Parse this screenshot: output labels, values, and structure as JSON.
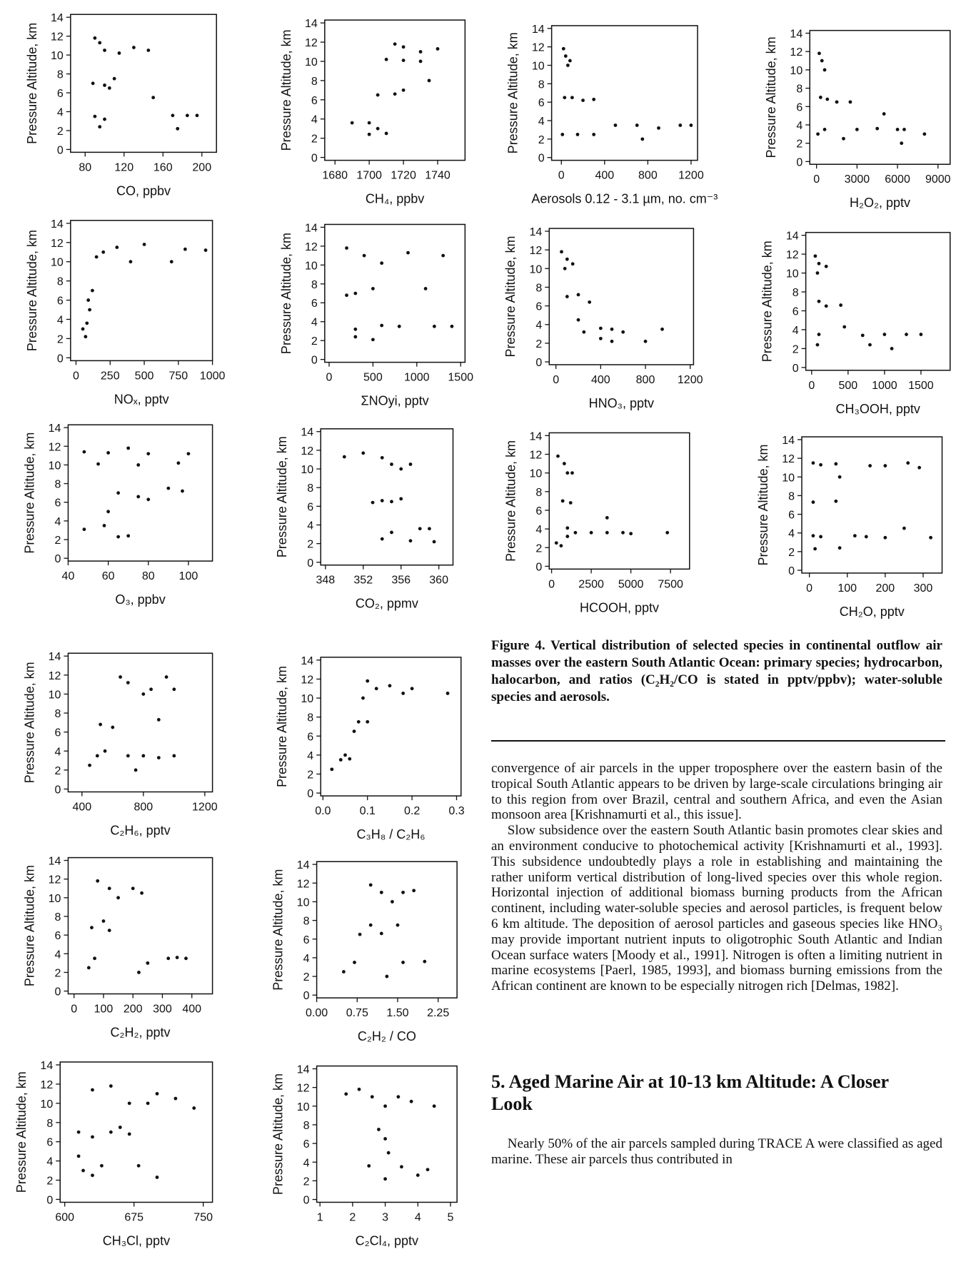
{
  "chart_data": [
    {
      "type": "scatter",
      "y_label": "Pressure Altitude,  km",
      "x_label": "CO,  ppbv",
      "xlim": [
        65,
        215
      ],
      "xticks": [
        80,
        120,
        160,
        200
      ],
      "ylim": [
        -0.3,
        14.3
      ],
      "yticks": [
        0,
        2,
        4,
        6,
        8,
        10,
        12,
        14
      ],
      "x": [
        90,
        95,
        100,
        115,
        130,
        145,
        88,
        100,
        105,
        110,
        90,
        100,
        95,
        170,
        185,
        195,
        175,
        150
      ],
      "y": [
        11.8,
        11.3,
        10.5,
        10.2,
        10.8,
        10.5,
        7,
        6.8,
        6.5,
        7.5,
        3.5,
        3.2,
        2.4,
        3.6,
        3.6,
        3.6,
        2.2,
        5.5
      ]
    },
    {
      "type": "scatter",
      "y_label": "Pressure Altitude,  km",
      "x_label": "CH₄,  ppbv",
      "xlim": [
        1674,
        1756
      ],
      "xticks": [
        1680,
        1700,
        1720,
        1740
      ],
      "ylim": [
        -0.3,
        14.3
      ],
      "yticks": [
        0,
        2,
        4,
        6,
        8,
        10,
        12,
        14
      ],
      "x": [
        1690,
        1700,
        1705,
        1700,
        1710,
        1705,
        1715,
        1720,
        1710,
        1720,
        1730,
        1720,
        1730,
        1740,
        1715,
        1735
      ],
      "y": [
        3.6,
        3.6,
        3.0,
        2.4,
        2.5,
        6.5,
        6.6,
        7.0,
        10.2,
        10.1,
        10.0,
        11.5,
        11.0,
        11.3,
        11.8,
        8.0
      ]
    },
    {
      "type": "scatter",
      "y_label": "Pressure Altitude,  km",
      "x_label": "Aerosols 0.12 - 3.1 µm,  no. cm⁻³",
      "xlim": [
        -90,
        1260
      ],
      "xticks": [
        0,
        400,
        800,
        1200
      ],
      "ylim": [
        -0.3,
        14.3
      ],
      "yticks": [
        0,
        2,
        4,
        6,
        8,
        10,
        12,
        14
      ],
      "x": [
        20,
        40,
        60,
        80,
        30,
        100,
        200,
        300,
        10,
        150,
        300,
        500,
        700,
        900,
        1100,
        1200,
        750
      ],
      "y": [
        11.8,
        11,
        10,
        10.5,
        6.5,
        6.5,
        6.2,
        6.3,
        2.5,
        2.5,
        2.5,
        3.5,
        3.5,
        3.2,
        3.5,
        3.5,
        2
      ]
    },
    {
      "type": "scatter",
      "y_label": "Pressure Altitude,  km",
      "x_label": "H₂O₂,  pptv",
      "xlim": [
        -500,
        9900
      ],
      "xticks": [
        0,
        3000,
        6000,
        9000
      ],
      "ylim": [
        -0.3,
        14.3
      ],
      "yticks": [
        0,
        2,
        4,
        6,
        8,
        10,
        12,
        14
      ],
      "x": [
        200,
        400,
        600,
        300,
        800,
        1500,
        2500,
        100,
        600,
        2000,
        3000,
        4500,
        5000,
        6000,
        6500,
        8000,
        6300
      ],
      "y": [
        11.8,
        11,
        10,
        7,
        6.8,
        6.5,
        6.5,
        3,
        3.5,
        2.5,
        3.5,
        3.6,
        5.2,
        3.5,
        3.5,
        3.0,
        2
      ]
    },
    {
      "type": "scatter",
      "y_label": "Pressure Altitude,  km",
      "x_label": "NOₓ,  pptv",
      "xlim": [
        -40,
        1000
      ],
      "xticks": [
        0,
        250,
        500,
        750,
        1000
      ],
      "ylim": [
        -0.3,
        14.3
      ],
      "yticks": [
        0,
        2,
        4,
        6,
        8,
        10,
        12,
        14
      ],
      "x": [
        50,
        80,
        70,
        100,
        120,
        90,
        150,
        200,
        300,
        400,
        500,
        700,
        800,
        950
      ],
      "y": [
        3,
        3.6,
        2.2,
        5,
        7,
        6,
        10.5,
        11,
        11.5,
        10,
        11.8,
        10,
        11.3,
        11.2
      ]
    },
    {
      "type": "scatter",
      "y_label": "Pressure Altitude,  km",
      "x_label": "ΣNOyi,  pptv",
      "xlim": [
        -50,
        1550
      ],
      "xticks": [
        0,
        500,
        1000,
        1500
      ],
      "ylim": [
        -0.3,
        14.3
      ],
      "yticks": [
        0,
        2,
        4,
        6,
        8,
        10,
        12,
        14
      ],
      "x": [
        200,
        400,
        600,
        900,
        1300,
        300,
        500,
        200,
        1100,
        300,
        600,
        800,
        1200,
        1400,
        300,
        500
      ],
      "y": [
        11.8,
        11,
        10.2,
        11.3,
        11,
        7,
        7.5,
        6.8,
        7.5,
        3.2,
        3.6,
        3.5,
        3.5,
        3.5,
        2.4,
        2.1
      ]
    },
    {
      "type": "scatter",
      "y_label": "Pressure Altitude,  km",
      "x_label": "HNO₃,  pptv",
      "xlim": [
        -60,
        1230
      ],
      "xticks": [
        0,
        400,
        800,
        1200
      ],
      "ylim": [
        -0.3,
        14.3
      ],
      "yticks": [
        0,
        2,
        4,
        6,
        8,
        10,
        12,
        14
      ],
      "x": [
        50,
        100,
        80,
        150,
        100,
        200,
        300,
        200,
        250,
        400,
        500,
        600,
        400,
        500,
        800,
        950
      ],
      "y": [
        11.8,
        11,
        10,
        10.5,
        7,
        7.2,
        6.4,
        4.5,
        3.2,
        3.6,
        3.5,
        3.2,
        2.5,
        2.2,
        2.2,
        3.5
      ]
    },
    {
      "type": "scatter",
      "y_label": "Pressure Altitude,  km",
      "x_label": "CH₃OOH,  pptv",
      "xlim": [
        -80,
        1900
      ],
      "xticks": [
        0,
        500,
        1000,
        1500
      ],
      "ylim": [
        -0.3,
        14.3
      ],
      "yticks": [
        0,
        2,
        4,
        6,
        8,
        10,
        12,
        14
      ],
      "x": [
        50,
        100,
        200,
        80,
        100,
        200,
        400,
        100,
        80,
        700,
        800,
        1000,
        1100,
        1300,
        1500,
        450
      ],
      "y": [
        11.8,
        11,
        10.7,
        10,
        7,
        6.5,
        6.6,
        3.5,
        2.4,
        3.4,
        2.4,
        3.5,
        2,
        3.5,
        3.5,
        4.3
      ]
    },
    {
      "type": "scatter",
      "y_label": "Pressure Altitude,  km",
      "x_label": "O₃,  ppbv",
      "xlim": [
        40,
        112
      ],
      "xticks": [
        40,
        60,
        80,
        100
      ],
      "ylim": [
        -0.3,
        14.3
      ],
      "yticks": [
        0,
        2,
        4,
        6,
        8,
        10,
        12,
        14
      ],
      "x": [
        48,
        60,
        70,
        80,
        100,
        55,
        75,
        95,
        65,
        75,
        80,
        90,
        97,
        48,
        58,
        65,
        70,
        60
      ],
      "y": [
        11.4,
        11.3,
        11.8,
        11.2,
        11.2,
        10.1,
        10.0,
        10.2,
        7,
        6.6,
        6.3,
        7.5,
        7.2,
        3.1,
        3.5,
        2.3,
        2.4,
        5
      ]
    },
    {
      "type": "scatter",
      "y_label": "Pressure Altitude,  km",
      "x_label": "CO₂,  ppmv",
      "xlim": [
        347.5,
        361.5
      ],
      "xticks": [
        348,
        352,
        356,
        360
      ],
      "ylim": [
        -0.3,
        14.3
      ],
      "yticks": [
        0,
        2,
        4,
        6,
        8,
        10,
        12,
        14
      ],
      "x": [
        350,
        352,
        354,
        355,
        356,
        357,
        355,
        354,
        356,
        354,
        355,
        357,
        358,
        359,
        359.5,
        353
      ],
      "y": [
        11.3,
        11.7,
        11.2,
        10.5,
        10,
        10.5,
        6.5,
        6.6,
        6.8,
        2.5,
        3.2,
        2.3,
        3.6,
        3.6,
        2.2,
        6.4
      ]
    },
    {
      "type": "scatter",
      "y_label": "Pressure Altitude,  km",
      "x_label": "HCOOH,  pptv",
      "xlim": [
        -150,
        8700
      ],
      "xticks": [
        0,
        2500,
        5000,
        7500
      ],
      "ylim": [
        -0.3,
        14.3
      ],
      "yticks": [
        0,
        2,
        4,
        6,
        8,
        10,
        12,
        14
      ],
      "x": [
        400,
        800,
        1000,
        700,
        1200,
        300,
        600,
        1000,
        1500,
        2500,
        3500,
        4500,
        5000,
        3500,
        1000,
        7300,
        1300
      ],
      "y": [
        11.8,
        11,
        10,
        7,
        6.8,
        2.5,
        2.2,
        3.2,
        3.6,
        3.6,
        3.6,
        3.6,
        3.5,
        5.2,
        4.1,
        3.6,
        10
      ]
    },
    {
      "type": "scatter",
      "y_label": "Pressure Altitude,  km",
      "x_label": "CH₂O,  pptv",
      "xlim": [
        -20,
        350
      ],
      "xticks": [
        0,
        100,
        200,
        300
      ],
      "ylim": [
        -0.3,
        14.3
      ],
      "yticks": [
        0,
        2,
        4,
        6,
        8,
        10,
        12,
        14
      ],
      "x": [
        10,
        30,
        70,
        80,
        160,
        200,
        260,
        290,
        10,
        70,
        10,
        30,
        80,
        120,
        150,
        200,
        250,
        320,
        15
      ],
      "y": [
        11.5,
        11.3,
        11.4,
        10,
        11.2,
        11.2,
        11.5,
        11,
        7.3,
        7.4,
        3.7,
        3.6,
        2.4,
        3.7,
        3.6,
        3.5,
        4.5,
        3.5,
        2.3
      ]
    },
    {
      "type": "scatter",
      "y_label": "Pressure Altitude,  km",
      "x_label": "C₂H₆,  pptv",
      "xlim": [
        310,
        1250
      ],
      "xticks": [
        400,
        800,
        1200
      ],
      "ylim": [
        -0.3,
        14.3
      ],
      "yticks": [
        0,
        2,
        4,
        6,
        8,
        10,
        12,
        14
      ],
      "x": [
        450,
        500,
        550,
        520,
        600,
        650,
        700,
        800,
        850,
        950,
        1000,
        900,
        700,
        800,
        900,
        1000,
        750
      ],
      "y": [
        2.5,
        3.5,
        4,
        6.8,
        6.5,
        11.8,
        11.2,
        10,
        10.5,
        11.8,
        10.5,
        7.3,
        3.5,
        3.5,
        3.3,
        3.5,
        2
      ]
    },
    {
      "type": "scatter",
      "y_label": "Pressure Altitude,  km",
      "x_label": "C₃H₈ / C₂H₆",
      "xlim": [
        -0.005,
        0.31
      ],
      "xticks": [
        {
          "value": 0,
          "label": "0.0"
        },
        0.1,
        0.2,
        0.3
      ],
      "ylim": [
        -0.3,
        14.3
      ],
      "yticks": [
        0,
        2,
        4,
        6,
        8,
        10,
        12,
        14
      ],
      "x": [
        0.02,
        0.04,
        0.05,
        0.07,
        0.08,
        0.09,
        0.1,
        0.12,
        0.15,
        0.18,
        0.2,
        0.28,
        0.1,
        0.06
      ],
      "y": [
        2.5,
        3.5,
        4,
        6.5,
        7.5,
        10,
        11.8,
        11,
        11.3,
        10.5,
        11,
        10.5,
        7.5,
        3.6
      ]
    },
    {
      "type": "scatter",
      "y_label": "Pressure Altitude,  km",
      "x_label": "C₂H₂,  pptv",
      "xlim": [
        -20,
        470
      ],
      "xticks": [
        0,
        100,
        200,
        300,
        400
      ],
      "ylim": [
        -0.3,
        14.3
      ],
      "yticks": [
        0,
        2,
        4,
        6,
        8,
        10,
        12,
        14
      ],
      "x": [
        50,
        70,
        60,
        100,
        120,
        80,
        120,
        150,
        200,
        230,
        250,
        320,
        350,
        380,
        220
      ],
      "y": [
        2.5,
        3.5,
        6.8,
        7.5,
        6.5,
        11.8,
        11,
        10,
        11,
        10.5,
        3,
        3.5,
        3.6,
        3.5,
        2
      ]
    },
    {
      "type": "scatter",
      "y_label": "Pressure Altitude,  km",
      "x_label": "C₂H₂ / CO",
      "xlim": [
        0,
        2.6
      ],
      "xticks": [
        {
          "value": 0,
          "label": "0.00"
        },
        0.75,
        {
          "value": 1.5,
          "label": "1.50"
        },
        2.25
      ],
      "ylim": [
        -0.3,
        14.3
      ],
      "yticks": [
        0,
        2,
        4,
        6,
        8,
        10,
        12,
        14
      ],
      "x": [
        0.5,
        0.7,
        0.8,
        1.0,
        1.2,
        1.0,
        1.2,
        1.4,
        1.6,
        1.8,
        1.3,
        1.6,
        2.0,
        1.5
      ],
      "y": [
        2.5,
        3.5,
        6.5,
        7.5,
        6.6,
        11.8,
        11,
        10,
        11,
        11.2,
        2,
        3.5,
        3.6,
        7.5
      ]
    },
    {
      "type": "scatter",
      "y_label": "Pressure Altitude,  km",
      "x_label": "CH₃Cl,  pptv",
      "xlim": [
        595,
        760
      ],
      "xticks": [
        600,
        675,
        750
      ],
      "ylim": [
        -0.3,
        14.3
      ],
      "yticks": [
        0,
        2,
        4,
        6,
        8,
        10,
        12,
        14
      ],
      "x": [
        615,
        620,
        630,
        640,
        630,
        650,
        660,
        670,
        630,
        650,
        670,
        690,
        700,
        720,
        740,
        680,
        700,
        615
      ],
      "y": [
        4.5,
        3,
        2.5,
        3.5,
        6.5,
        7,
        7.5,
        6.8,
        11.4,
        11.8,
        10,
        10,
        11,
        10.5,
        9.5,
        3.5,
        2.3,
        7
      ]
    },
    {
      "type": "scatter",
      "y_label": "Pressure Altitude,  km",
      "x_label": "C₂Cl₄,  pptv",
      "xlim": [
        0.9,
        5.2
      ],
      "xticks": [
        1,
        2,
        3,
        4,
        5
      ],
      "ylim": [
        -0.3,
        14.3
      ],
      "yticks": [
        0,
        2,
        4,
        6,
        8,
        10,
        12,
        14
      ],
      "x": [
        1.8,
        2.2,
        2.6,
        3.0,
        3.4,
        3.8,
        4.5,
        2.8,
        3.0,
        3.1,
        2.5,
        3.0,
        3.5,
        4.0,
        4.3
      ],
      "y": [
        11.3,
        11.8,
        11,
        10,
        11,
        10.5,
        10,
        7.5,
        6.5,
        5,
        3.6,
        2.2,
        3.5,
        2.6,
        3.2
      ]
    }
  ],
  "figure_caption": {
    "label": "Figure 4.",
    "text": "Vertical distribution of selected species in continental outflow air masses over the eastern South Atlantic Ocean: primary species;  hydrocarbon, halocarbon, and ratios (C₂H₂/CO is stated in pptv/ppbv); water-soluble species and aerosols."
  },
  "body": {
    "paragraphs": [
      "convergence of air parcels in the upper troposphere over the eastern basin of the tropical South Atlantic appears to be driven by large-scale circulations bringing air to this region from over Brazil, central and southern Africa, and even the Asian monsoon area [Krishnamurti et al., this issue].",
      "Slow subsidence over the eastern South Atlantic basin promotes clear skies and an environment conducive to photochemical activity [Krishnamurti et al., 1993].  This subsidence undoubtedly plays a role in establishing and maintaining the rather uniform vertical distribution of long-lived species over this whole region.  Horizontal injection of additional biomass burning products from the African continent, including water-soluble species and aerosol particles, is frequent below 6 km altitude. The deposition of aerosol particles and gaseous species like HNO₃ may provide important nutrient inputs to oligotrophic South Atlantic and Indian Ocean surface waters [Moody et al., 1991].  Nitrogen is often a limiting nutrient in marine ecosystems [Paerl, 1985, 1993], and biomass burning emissions from the African continent are known to be especially nitrogen rich [Delmas, 1982]."
    ],
    "section_heading": "5.  Aged Marine Air at 10-13 km Altitude: A Closer Look",
    "paragraphs_after": [
      "Nearly 50% of the air parcels sampled during TRACE A were classified as aged marine.  These air parcels thus contributed in"
    ]
  }
}
